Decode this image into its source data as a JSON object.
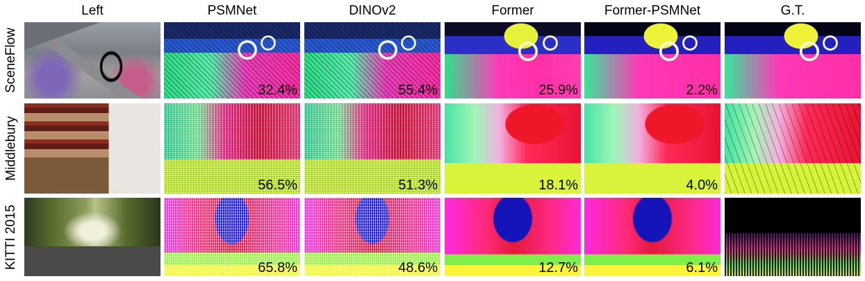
{
  "columns": [
    "Left",
    "PSMNet",
    "DINOv2",
    "Former",
    "Former-PSMNet",
    "G.T."
  ],
  "rows": [
    {
      "label": "SceneFlow",
      "errors": [
        "32.4%",
        "55.4%",
        "25.9%",
        "2.2%"
      ]
    },
    {
      "label": "Middlebury",
      "errors": [
        "56.5%",
        "51.3%",
        "18.1%",
        "4.0%"
      ]
    },
    {
      "label": "KITTI 2015",
      "errors": [
        "65.8%",
        "48.6%",
        "12.7%",
        "6.1%"
      ]
    }
  ]
}
